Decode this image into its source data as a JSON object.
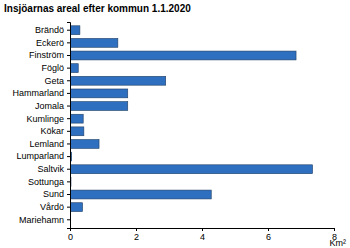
{
  "chart_data": {
    "type": "bar",
    "orientation": "horizontal",
    "title": "Insjöarnas areal efter kommun 1.1.2020",
    "x_label": "Km²",
    "categories": [
      "Brändö",
      "Eckerö",
      "Finström",
      "Föglö",
      "Geta",
      "Hammarland",
      "Jomala",
      "Kumlinge",
      "Kökar",
      "Lemland",
      "Lumparland",
      "Saltvik",
      "Sottunga",
      "Sund",
      "Vårdö",
      "Mariehamn"
    ],
    "values": [
      0.3,
      1.45,
      6.85,
      0.25,
      2.9,
      1.75,
      1.75,
      0.4,
      0.42,
      0.88,
      0.05,
      7.35,
      0.03,
      4.28,
      0.38,
      0
    ],
    "color": "#2f6fbf",
    "xlim": [
      0,
      8
    ],
    "xticks": [
      0,
      2,
      4,
      6,
      8
    ],
    "grid": false
  }
}
